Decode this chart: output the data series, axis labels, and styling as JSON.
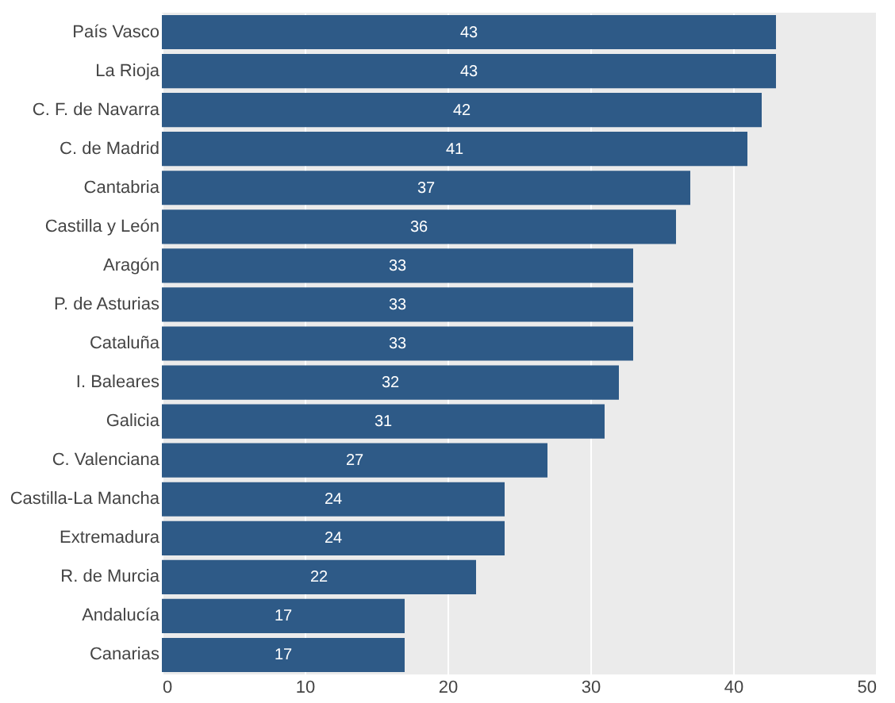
{
  "chart_data": {
    "type": "bar",
    "orientation": "horizontal",
    "categories": [
      "País Vasco",
      "La Rioja",
      "C. F. de Navarra",
      "C. de Madrid",
      "Cantabria",
      "Castilla y León",
      "Aragón",
      "P. de Asturias",
      "Cataluña",
      "I. Baleares",
      "Galicia",
      "C. Valenciana",
      "Castilla-La Mancha",
      "Extremadura",
      "R. de Murcia",
      "Andalucía",
      "Canarias"
    ],
    "values": [
      43,
      43,
      42,
      41,
      37,
      36,
      33,
      33,
      33,
      32,
      31,
      27,
      24,
      24,
      22,
      17,
      17
    ],
    "color": "#2e5a87",
    "xlim": [
      0,
      50
    ],
    "xticks": [
      0,
      10,
      20,
      30,
      40,
      50
    ],
    "grid": "x",
    "data_labels": true
  }
}
